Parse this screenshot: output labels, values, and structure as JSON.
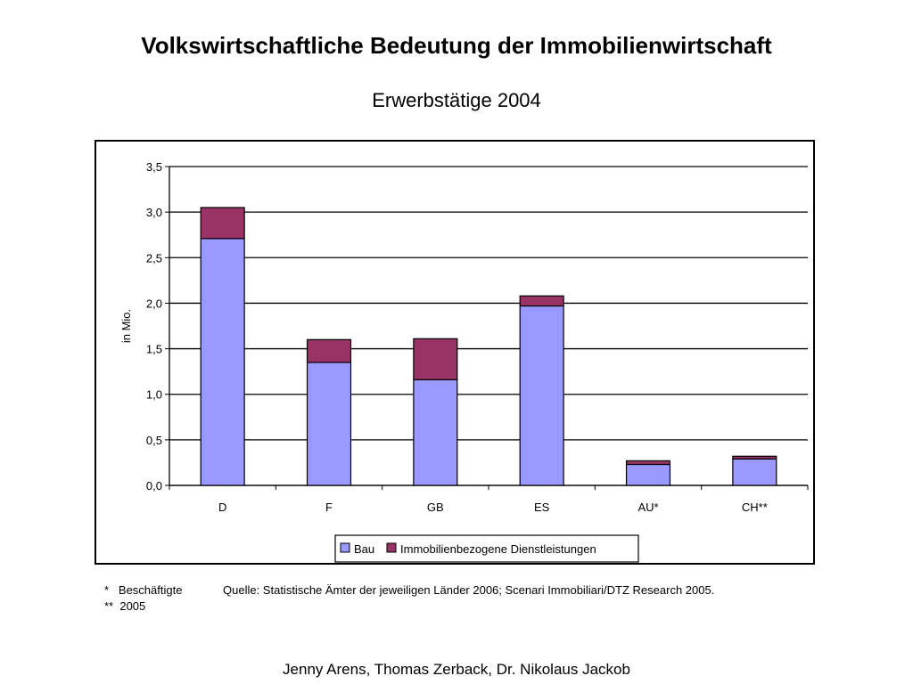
{
  "page": {
    "title": "Volkswirtschaftliche Bedeutung der Immobilienwirtschaft",
    "subtitle": "Erwerbstätige 2004",
    "footnote_1": "*   Beschäftigte",
    "footnote_2": "**  2005",
    "source": "Quelle: Statistische Ämter der jeweiligen Länder 2006; Scenari Immobiliari/DTZ Research 2005.",
    "footer": "Jenny Arens, Thomas Zerback, Dr. Nikolaus Jackob"
  },
  "chart_data": {
    "type": "bar",
    "stacked": true,
    "categories": [
      "D",
      "F",
      "GB",
      "ES",
      "AU*",
      "CH**"
    ],
    "series": [
      {
        "name": "Bau",
        "values": [
          2.71,
          1.35,
          1.16,
          1.97,
          0.23,
          0.29
        ],
        "color": "#9999ff"
      },
      {
        "name": "Immobilienbezogene Dienstleistungen",
        "values": [
          0.34,
          0.25,
          0.45,
          0.11,
          0.04,
          0.03
        ],
        "color": "#993366"
      }
    ],
    "title": "",
    "xlabel": "",
    "ylabel": "in Mio.",
    "ylim": [
      0,
      3.5
    ],
    "yticks": [
      "0,0",
      "0,5",
      "1,0",
      "1,5",
      "2,0",
      "2,5",
      "3,0",
      "3,5"
    ],
    "grid": true,
    "legend": "bottom"
  }
}
